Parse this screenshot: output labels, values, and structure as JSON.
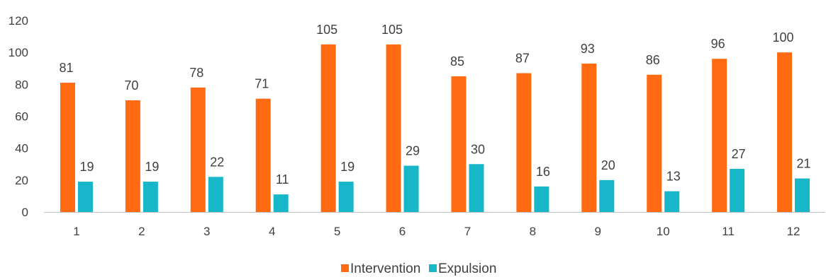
{
  "chart_data": {
    "type": "bar",
    "categories": [
      "1",
      "2",
      "3",
      "4",
      "5",
      "6",
      "7",
      "8",
      "9",
      "10",
      "11",
      "12"
    ],
    "series": [
      {
        "name": "Intervention",
        "color": "#FF6A13",
        "values": [
          81,
          70,
          78,
          71,
          105,
          105,
          85,
          87,
          93,
          86,
          96,
          100
        ]
      },
      {
        "name": "Expulsion",
        "color": "#17B6C9",
        "values": [
          19,
          19,
          22,
          11,
          19,
          29,
          30,
          16,
          20,
          13,
          27,
          21
        ]
      }
    ],
    "yticks": [
      "0",
      "20",
      "40",
      "60",
      "80",
      "100",
      "120"
    ],
    "ylim": [
      0,
      120
    ],
    "grid": false,
    "legend": "bottom"
  }
}
